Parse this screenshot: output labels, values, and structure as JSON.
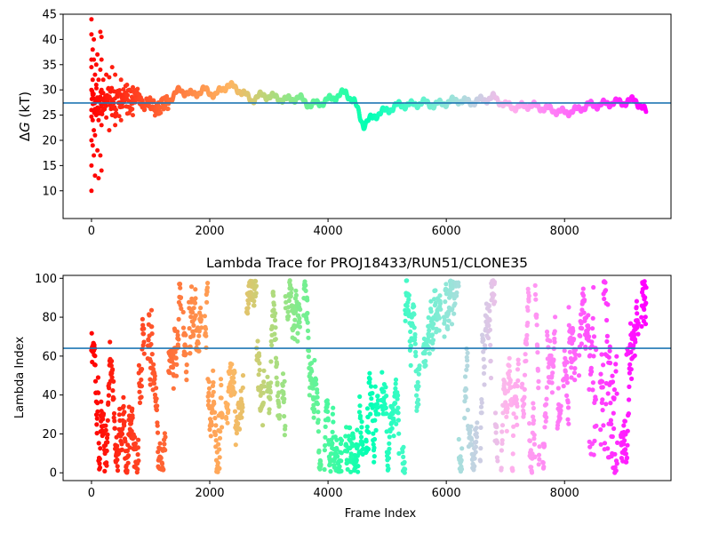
{
  "chart_data": [
    {
      "type": "scatter",
      "title": "",
      "xlabel": "",
      "ylabel": "ΔG (kT)",
      "ylabel_parts": {
        "delta": "Δ",
        "var": "G",
        "unit": " (kT)"
      },
      "xlim": [
        -480,
        9800
      ],
      "ylim": [
        4.5,
        45
      ],
      "xticks": [
        0,
        2000,
        4000,
        6000,
        8000
      ],
      "yticks": [
        10,
        15,
        20,
        25,
        30,
        35,
        40,
        45
      ],
      "x_max_frame": 9380,
      "reference_line": 27.4,
      "reference_line_color": "#1f77b4",
      "colormap": "rainbow, frame-ordered (red at frame 0 to violet at last frame)",
      "trace_anchors": [
        [
          0,
          27.0
        ],
        [
          150,
          27.5
        ],
        [
          300,
          28.5
        ],
        [
          450,
          27.5
        ],
        [
          600,
          28.0
        ],
        [
          800,
          28.5
        ],
        [
          1000,
          26.5
        ],
        [
          1200,
          26.5
        ],
        [
          1350,
          28.5
        ],
        [
          1500,
          30.0
        ],
        [
          1700,
          29.0
        ],
        [
          1900,
          30.0
        ],
        [
          2100,
          29.0
        ],
        [
          2300,
          31.0
        ],
        [
          2500,
          30.0
        ],
        [
          2700,
          28.0
        ],
        [
          2900,
          29.0
        ],
        [
          3100,
          28.5
        ],
        [
          3300,
          28.0
        ],
        [
          3500,
          28.5
        ],
        [
          3700,
          27.0
        ],
        [
          3900,
          27.5
        ],
        [
          4100,
          28.5
        ],
        [
          4300,
          29.5
        ],
        [
          4450,
          27.5
        ],
        [
          4600,
          23.0
        ],
        [
          4800,
          25.0
        ],
        [
          5000,
          26.0
        ],
        [
          5200,
          27.0
        ],
        [
          5400,
          27.0
        ],
        [
          5600,
          27.5
        ],
        [
          5800,
          27.0
        ],
        [
          6000,
          27.5
        ],
        [
          6200,
          28.0
        ],
        [
          6400,
          27.5
        ],
        [
          6600,
          28.0
        ],
        [
          6800,
          28.5
        ],
        [
          7000,
          27.0
        ],
        [
          7200,
          26.5
        ],
        [
          7400,
          27.0
        ],
        [
          7600,
          26.5
        ],
        [
          7800,
          26.0
        ],
        [
          8000,
          25.5
        ],
        [
          8200,
          26.0
        ],
        [
          8400,
          27.0
        ],
        [
          8600,
          27.0
        ],
        [
          8800,
          27.5
        ],
        [
          9000,
          27.5
        ],
        [
          9200,
          28.0
        ],
        [
          9380,
          25.5
        ]
      ],
      "early_spread_points": [
        [
          0,
          44
        ],
        [
          0,
          41
        ],
        [
          0,
          36
        ],
        [
          0,
          34.5
        ],
        [
          0,
          30
        ],
        [
          0,
          26
        ],
        [
          0,
          20
        ],
        [
          0,
          15
        ],
        [
          0,
          10
        ],
        [
          20,
          38
        ],
        [
          20,
          32
        ],
        [
          20,
          29
        ],
        [
          20,
          24
        ],
        [
          20,
          19
        ],
        [
          40,
          40
        ],
        [
          40,
          36
        ],
        [
          40,
          22
        ],
        [
          40,
          17
        ],
        [
          60,
          33
        ],
        [
          60,
          21
        ],
        [
          60,
          13
        ],
        [
          80,
          35
        ],
        [
          80,
          31
        ],
        [
          80,
          25
        ],
        [
          100,
          37
        ],
        [
          100,
          28.5
        ],
        [
          100,
          18
        ],
        [
          120,
          32
        ],
        [
          120,
          24
        ],
        [
          120,
          12.5
        ],
        [
          150,
          41.5
        ],
        [
          150,
          34
        ],
        [
          150,
          17
        ],
        [
          170,
          40.5
        ],
        [
          170,
          36
        ],
        [
          170,
          30
        ],
        [
          170,
          23
        ],
        [
          170,
          14
        ],
        [
          200,
          32
        ],
        [
          200,
          26
        ],
        [
          250,
          33
        ],
        [
          250,
          24.5
        ],
        [
          300,
          32.5
        ],
        [
          300,
          22
        ],
        [
          350,
          34.5
        ],
        [
          350,
          25
        ],
        [
          400,
          33
        ],
        [
          400,
          23
        ],
        [
          500,
          32
        ],
        [
          500,
          24
        ],
        [
          600,
          31
        ],
        [
          700,
          30.5
        ],
        [
          700,
          25
        ]
      ]
    },
    {
      "type": "scatter",
      "title": "Lambda Trace for PROJ18433/RUN51/CLONE35",
      "xlabel": "Frame Index",
      "ylabel": "Lambda Index",
      "xlim": [
        -480,
        9800
      ],
      "ylim": [
        -4,
        101.5
      ],
      "xticks": [
        0,
        2000,
        4000,
        6000,
        8000
      ],
      "yticks": [
        0,
        20,
        40,
        60,
        80,
        100
      ],
      "x_max_frame": 9380,
      "lambda_range": [
        0,
        99
      ],
      "reference_line": 64,
      "reference_line_color": "#1f77b4",
      "colormap": "rainbow, frame-ordered (red at frame 0 to violet at last frame)"
    }
  ]
}
